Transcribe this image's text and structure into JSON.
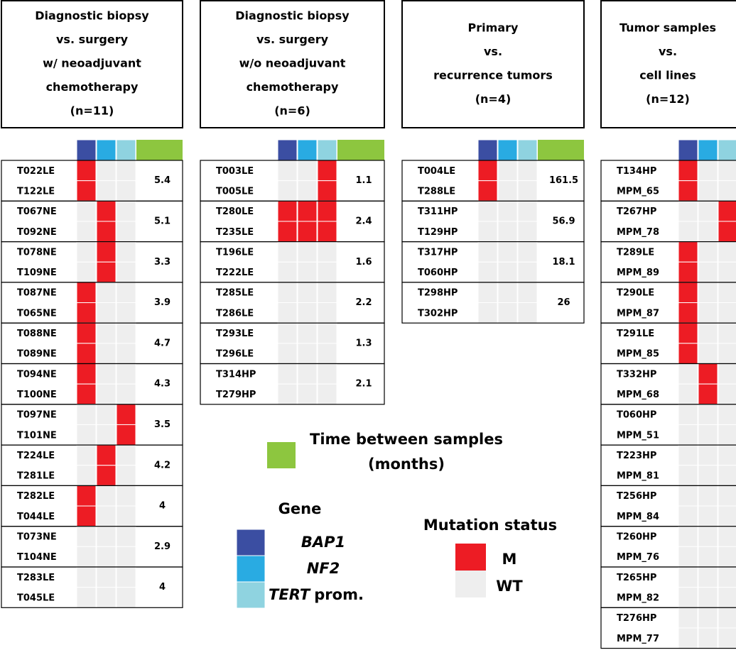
{
  "panels": [
    {
      "title": [
        "Diagnostic biopsy",
        "vs. surgery",
        "w/ neoadjuvant",
        "chemotherapy",
        "(n=11)"
      ],
      "pairs": [
        {
          "samples": [
            "T022LE",
            "T122LE"
          ],
          "status": [
            "M",
            "WT",
            "WT"
          ],
          "time": 5.4
        },
        {
          "samples": [
            "T067NE",
            "T092NE"
          ],
          "status": [
            "WT",
            "M",
            "WT"
          ],
          "time": 5.1
        },
        {
          "samples": [
            "T078NE",
            "T109NE"
          ],
          "status": [
            "WT",
            "M",
            "WT"
          ],
          "time": 3.3
        },
        {
          "samples": [
            "T087NE",
            "T065NE"
          ],
          "status": [
            "M",
            "WT",
            "WT"
          ],
          "time": 3.9
        },
        {
          "samples": [
            "T088NE",
            "T089NE"
          ],
          "status": [
            "M",
            "WT",
            "WT"
          ],
          "time": 4.7
        },
        {
          "samples": [
            "T094NE",
            "T100NE"
          ],
          "status": [
            "M",
            "WT",
            "WT"
          ],
          "time": 4.3
        },
        {
          "samples": [
            "T097NE",
            "T101NE"
          ],
          "status": [
            "WT",
            "WT",
            "M"
          ],
          "time": 3.5
        },
        {
          "samples": [
            "T224LE",
            "T281LE"
          ],
          "status": [
            "WT",
            "M",
            "WT"
          ],
          "time": 4.2
        },
        {
          "samples": [
            "T282LE",
            "T044LE"
          ],
          "status": [
            "M",
            "WT",
            "WT"
          ],
          "time": 4
        },
        {
          "samples": [
            "T073NE",
            "T104NE"
          ],
          "status": [
            "WT",
            "WT",
            "WT"
          ],
          "time": 2.9
        },
        {
          "samples": [
            "T283LE",
            "T045LE"
          ],
          "status": [
            "WT",
            "WT",
            "WT"
          ],
          "time": 4
        }
      ]
    },
    {
      "title": [
        "Diagnostic biopsy",
        "vs. surgery",
        "w/o neoadjuvant",
        "chemotherapy",
        "(n=6)"
      ],
      "pairs": [
        {
          "samples": [
            "T003LE",
            "T005LE"
          ],
          "status": [
            "WT",
            "WT",
            "M"
          ],
          "time": 1.1
        },
        {
          "samples": [
            "T280LE",
            "T235LE"
          ],
          "status": [
            "M",
            "M",
            "M"
          ],
          "time": 2.4
        },
        {
          "samples": [
            "T196LE",
            "T222LE"
          ],
          "status": [
            "WT",
            "WT",
            "WT"
          ],
          "time": 1.6
        },
        {
          "samples": [
            "T285LE",
            "T286LE"
          ],
          "status": [
            "WT",
            "WT",
            "WT"
          ],
          "time": 2.2
        },
        {
          "samples": [
            "T293LE",
            "T296LE"
          ],
          "status": [
            "WT",
            "WT",
            "WT"
          ],
          "time": 1.3
        },
        {
          "samples": [
            "T314HP",
            "T279HP"
          ],
          "status": [
            "WT",
            "WT",
            "WT"
          ],
          "time": 2.1
        }
      ]
    },
    {
      "title": [
        "Primary",
        "vs.",
        "recurrence tumors",
        "(n=4)"
      ],
      "pairs": [
        {
          "samples": [
            "T004LE",
            "T288LE"
          ],
          "status": [
            "M",
            "WT",
            "WT"
          ],
          "time": 161.5
        },
        {
          "samples": [
            "T311HP",
            "T129HP"
          ],
          "status": [
            "WT",
            "WT",
            "WT"
          ],
          "time": 56.9
        },
        {
          "samples": [
            "T317HP",
            "T060HP"
          ],
          "status": [
            "WT",
            "WT",
            "WT"
          ],
          "time": 18.1
        },
        {
          "samples": [
            "T298HP",
            "T302HP"
          ],
          "status": [
            "WT",
            "WT",
            "WT"
          ],
          "time": 26
        }
      ]
    },
    {
      "title": [
        "Tumor samples",
        "vs.",
        "cell lines",
        "(n=12)"
      ],
      "pairs": [
        {
          "samples": [
            "T134HP",
            "MPM_65"
          ],
          "status": [
            "M",
            "WT",
            "WT"
          ]
        },
        {
          "samples": [
            "T267HP",
            "MPM_78"
          ],
          "status": [
            "WT",
            "WT",
            "M"
          ]
        },
        {
          "samples": [
            "T289LE",
            "MPM_89"
          ],
          "status": [
            "M",
            "WT",
            "WT"
          ]
        },
        {
          "samples": [
            "T290LE",
            "MPM_87"
          ],
          "status": [
            "M",
            "WT",
            "WT"
          ]
        },
        {
          "samples": [
            "T291LE",
            "MPM_85"
          ],
          "status": [
            "M",
            "WT",
            "WT"
          ]
        },
        {
          "samples": [
            "T332HP",
            "MPM_68"
          ],
          "status": [
            "WT",
            "M",
            "WT"
          ]
        },
        {
          "samples": [
            "T060HP",
            "MPM_51"
          ],
          "status": [
            "WT",
            "WT",
            "WT"
          ]
        },
        {
          "samples": [
            "T223HP",
            "MPM_81"
          ],
          "status": [
            "WT",
            "WT",
            "WT"
          ]
        },
        {
          "samples": [
            "T256HP",
            "MPM_84"
          ],
          "status": [
            "WT",
            "WT",
            "WT"
          ]
        },
        {
          "samples": [
            "T260HP",
            "MPM_76"
          ],
          "status": [
            "WT",
            "WT",
            "WT"
          ]
        },
        {
          "samples": [
            "T265HP",
            "MPM_82"
          ],
          "status": [
            "WT",
            "WT",
            "WT"
          ]
        },
        {
          "samples": [
            "T276HP",
            "MPM_77"
          ],
          "status": [
            "WT",
            "WT",
            "WT"
          ]
        }
      ]
    }
  ],
  "legend": {
    "time": {
      "label": [
        "Time between samples",
        "(months)"
      ],
      "color": "#8dc63f"
    },
    "gene_title": "Gene",
    "genes": [
      {
        "name": "BAP1",
        "color": "#3b4ea2"
      },
      {
        "name": "NF2",
        "color": "#29abe2"
      },
      {
        "name": "TERT",
        "suffix": "prom.",
        "color": "#8fd3e0"
      }
    ],
    "status_title": "Mutation status",
    "status": [
      {
        "code": "M",
        "color": "#ed1c24"
      },
      {
        "code": "WT",
        "color": "#eeeeee"
      }
    ]
  }
}
